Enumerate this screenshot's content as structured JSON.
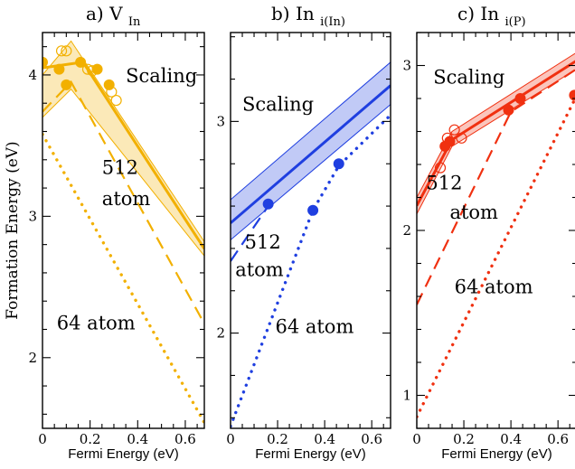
{
  "ylabel": "Formation Energy (eV)",
  "chart_data": [
    {
      "type": "line",
      "title": "a) V",
      "title_sub": "In",
      "xlabel": "Fermi Energy (eV)",
      "xlim": [
        0,
        0.68
      ],
      "ylim": [
        1.5,
        4.3
      ],
      "xticks": [
        0,
        0.2,
        0.4,
        0.6
      ],
      "xtick_labels": [
        "0",
        "0.2",
        "0.4",
        "0.6"
      ],
      "yticks": [
        2,
        3,
        4
      ],
      "ytick_labels": [
        "2",
        "3",
        "4"
      ],
      "color": "#f2b000",
      "annotations": [
        {
          "text": "Scaling",
          "x": 0.35,
          "y": 3.95
        },
        {
          "text": "512",
          "x": 0.25,
          "y": 3.3
        },
        {
          "text": "atom",
          "x": 0.25,
          "y": 3.08
        },
        {
          "text": "64 atom",
          "x": 0.06,
          "y": 2.2
        }
      ],
      "band": {
        "x": [
          0,
          0.12,
          0.68
        ],
        "lo": [
          3.7,
          3.9,
          2.72
        ],
        "hi": [
          4.0,
          4.24,
          2.82
        ]
      },
      "series": [
        {
          "role": "scaling",
          "style": "solid",
          "x": [
            0,
            0.17,
            0.68
          ],
          "y": [
            4.05,
            4.09,
            2.77
          ]
        },
        {
          "role": "512",
          "style": "dashed",
          "x": [
            0.0,
            0.12,
            0.68
          ],
          "y": [
            3.74,
            3.95,
            2.24
          ]
        },
        {
          "role": "64",
          "style": "dotted",
          "x": [
            0.0,
            0.68
          ],
          "y": [
            3.58,
            1.54
          ]
        }
      ],
      "points_filled": [
        {
          "x": 0.0,
          "y": 4.09
        },
        {
          "x": 0.07,
          "y": 4.04
        },
        {
          "x": 0.1,
          "y": 3.93
        },
        {
          "x": 0.16,
          "y": 4.09
        },
        {
          "x": 0.23,
          "y": 4.04
        },
        {
          "x": 0.28,
          "y": 3.93
        }
      ],
      "points_open": [
        {
          "x": 0.08,
          "y": 4.17
        },
        {
          "x": 0.1,
          "y": 4.17
        },
        {
          "x": 0.19,
          "y": 4.04
        },
        {
          "x": 0.21,
          "y": 4.03
        },
        {
          "x": 0.29,
          "y": 3.88
        },
        {
          "x": 0.31,
          "y": 3.82
        }
      ]
    },
    {
      "type": "line",
      "title": "b) In",
      "title_sub": "i(In)",
      "xlabel": "Fermi Energy (eV)",
      "xlim": [
        0,
        0.68
      ],
      "ylim": [
        1.55,
        3.42
      ],
      "xticks": [
        0,
        0.2,
        0.4,
        0.6
      ],
      "xtick_labels": [
        "0",
        "0.2",
        "0.4",
        "0.6"
      ],
      "yticks": [
        2,
        3
      ],
      "ytick_labels": [
        "2",
        "3"
      ],
      "color": "#1f3fe0",
      "annotations": [
        {
          "text": "Scaling",
          "x": 0.05,
          "y": 3.05
        },
        {
          "text": "512",
          "x": 0.06,
          "y": 2.4
        },
        {
          "text": "atom",
          "x": 0.02,
          "y": 2.27
        },
        {
          "text": "64 atom",
          "x": 0.19,
          "y": 2.0
        }
      ],
      "band": {
        "x": [
          0,
          0.68
        ],
        "lo": [
          2.44,
          3.08
        ],
        "hi": [
          2.63,
          3.28
        ]
      },
      "series": [
        {
          "role": "scaling",
          "style": "solid",
          "x": [
            0,
            0.68
          ],
          "y": [
            2.52,
            3.17
          ]
        },
        {
          "role": "512",
          "style": "dashed",
          "x": [
            0.0,
            0.16
          ],
          "y": [
            2.34,
            2.6
          ]
        },
        {
          "role": "64",
          "style": "dotted",
          "x": [
            0.0,
            0.35,
            0.46,
            0.68
          ],
          "y": [
            1.56,
            2.58,
            2.79,
            3.03
          ]
        }
      ],
      "points_filled": [
        {
          "x": 0.16,
          "y": 2.61
        },
        {
          "x": 0.35,
          "y": 2.58
        },
        {
          "x": 0.46,
          "y": 2.8
        }
      ],
      "points_open": []
    },
    {
      "type": "line",
      "title": "c) In",
      "title_sub": "i(P)",
      "xlabel": "Fermi Energy (eV)",
      "xlim": [
        0,
        0.68
      ],
      "ylim": [
        0.8,
        3.2
      ],
      "xticks": [
        0,
        0.2,
        0.4,
        0.6
      ],
      "xtick_labels": [
        "0",
        "0.2",
        "0.4",
        "0.6"
      ],
      "yticks": [
        1,
        2,
        3
      ],
      "ytick_labels": [
        "1",
        "2",
        "3"
      ],
      "color": "#f03010",
      "annotations": [
        {
          "text": "Scaling",
          "x": 0.07,
          "y": 2.89
        },
        {
          "text": "512",
          "x": 0.04,
          "y": 2.25
        },
        {
          "text": "atom",
          "x": 0.14,
          "y": 2.07
        },
        {
          "text": "64 atom",
          "x": 0.16,
          "y": 1.62
        }
      ],
      "band": {
        "x": [
          0,
          0.15,
          0.68
        ],
        "lo": [
          2.1,
          2.51,
          2.98
        ],
        "hi": [
          2.2,
          2.6,
          3.08
        ]
      },
      "series": [
        {
          "role": "scaling",
          "style": "solid",
          "x": [
            0,
            0.15,
            0.68
          ],
          "y": [
            2.15,
            2.55,
            3.03
          ]
        },
        {
          "role": "512",
          "style": "dashed",
          "x": [
            0.0,
            0.4,
            0.68
          ],
          "y": [
            1.55,
            2.72,
            2.98
          ]
        },
        {
          "role": "64",
          "style": "dotted",
          "x": [
            0.0,
            0.68
          ],
          "y": [
            0.87,
            2.82
          ]
        }
      ],
      "points_filled": [
        {
          "x": 0.12,
          "y": 2.51
        },
        {
          "x": 0.14,
          "y": 2.54
        },
        {
          "x": 0.39,
          "y": 2.73
        },
        {
          "x": 0.44,
          "y": 2.8
        },
        {
          "x": 0.67,
          "y": 2.82
        }
      ],
      "points_open": [
        {
          "x": 0.1,
          "y": 2.38
        },
        {
          "x": 0.13,
          "y": 2.56
        },
        {
          "x": 0.16,
          "y": 2.61
        },
        {
          "x": 0.19,
          "y": 2.56
        }
      ]
    }
  ]
}
